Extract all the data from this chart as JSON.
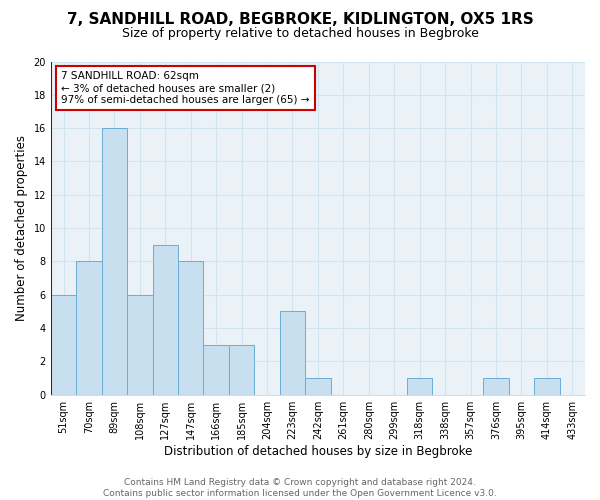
{
  "title": "7, SANDHILL ROAD, BEGBROKE, KIDLINGTON, OX5 1RS",
  "subtitle": "Size of property relative to detached houses in Begbroke",
  "xlabel": "Distribution of detached houses by size in Begbroke",
  "ylabel": "Number of detached properties",
  "bar_labels": [
    "51sqm",
    "70sqm",
    "89sqm",
    "108sqm",
    "127sqm",
    "147sqm",
    "166sqm",
    "185sqm",
    "204sqm",
    "223sqm",
    "242sqm",
    "261sqm",
    "280sqm",
    "299sqm",
    "318sqm",
    "338sqm",
    "357sqm",
    "376sqm",
    "395sqm",
    "414sqm",
    "433sqm"
  ],
  "bar_values": [
    6,
    8,
    16,
    6,
    9,
    8,
    3,
    3,
    0,
    5,
    1,
    0,
    0,
    0,
    1,
    0,
    0,
    1,
    0,
    1,
    0
  ],
  "bar_color_fill": "#c8dff0",
  "bar_color_edge": "#6aadd5",
  "ylim": [
    0,
    20
  ],
  "yticks": [
    0,
    2,
    4,
    6,
    8,
    10,
    12,
    14,
    16,
    18,
    20
  ],
  "marker_line_color": "#8b0000",
  "annotation_title": "7 SANDHILL ROAD: 62sqm",
  "annotation_line1": "← 3% of detached houses are smaller (2)",
  "annotation_line2": "97% of semi-detached houses are larger (65) →",
  "annotation_box_facecolor": "#ffffff",
  "annotation_box_edgecolor": "#cc0000",
  "grid_color": "#d0e4f0",
  "bg_color": "#eaf2f8",
  "title_fontsize": 11,
  "subtitle_fontsize": 9,
  "axis_label_fontsize": 8.5,
  "tick_fontsize": 7,
  "annotation_fontsize": 7.5,
  "footer_fontsize": 6.5,
  "footer_line1": "Contains HM Land Registry data © Crown copyright and database right 2024.",
  "footer_line2": "Contains public sector information licensed under the Open Government Licence v3.0."
}
